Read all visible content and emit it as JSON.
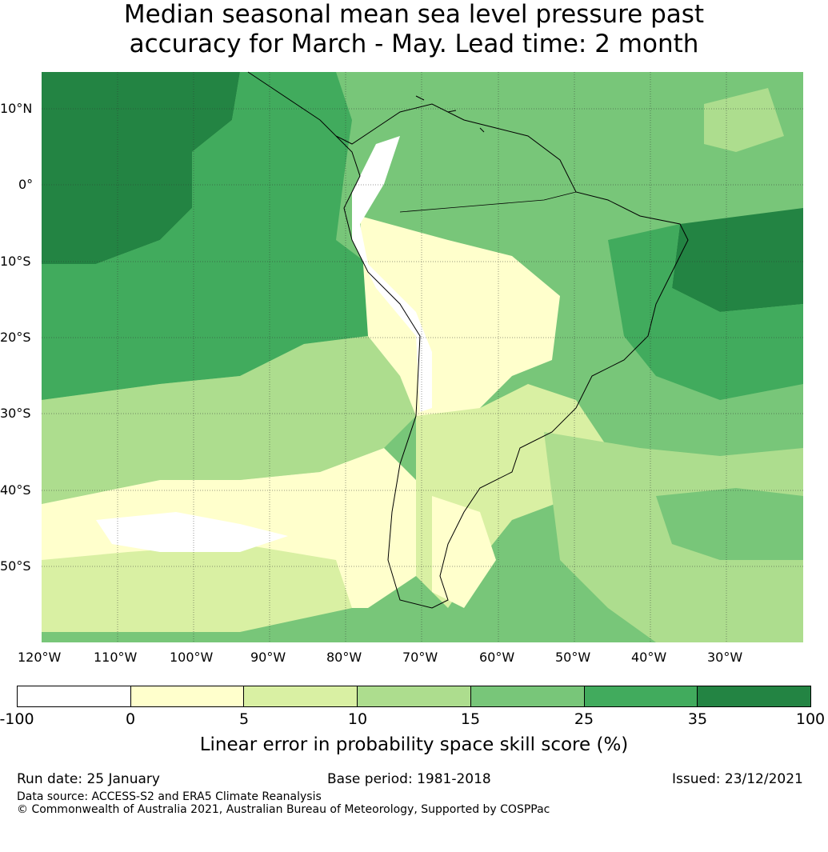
{
  "title_line1": "Median seasonal mean sea level pressure past",
  "title_line2": "accuracy for March - May. Lead time: 2 month",
  "map": {
    "lat_labels": [
      "10°N",
      "0°",
      "10°S",
      "20°S",
      "30°S",
      "40°S",
      "50°S"
    ],
    "lon_labels": [
      "120°W",
      "110°W",
      "100°W",
      "90°W",
      "80°W",
      "70°W",
      "60°W",
      "50°W",
      "40°W",
      "30°W"
    ],
    "colors": {
      "white": "#ffffff",
      "c0_5": "#ffffcc",
      "c5_10": "#d9f0a3",
      "c10_15": "#addd8e",
      "c15_25": "#78c679",
      "c25_35": "#41ab5d",
      "c35_100": "#238443",
      "coast": "#000000"
    }
  },
  "colorbar": {
    "labels": [
      "-100",
      "0",
      "5",
      "10",
      "15",
      "25",
      "35",
      "100"
    ],
    "title": "Linear error in probability space skill score (%)"
  },
  "footer": {
    "run_date": "Run date: 25 January",
    "base_period": "Base period: 1981-2018",
    "issued": "Issued: 23/12/2021",
    "data_source": "Data source: ACCESS-S2 and ERA5 Climate Reanalysis",
    "copyright": "© Commonwealth of Australia 2021, Australian Bureau of Meteorology, Supported by COSPPac"
  }
}
